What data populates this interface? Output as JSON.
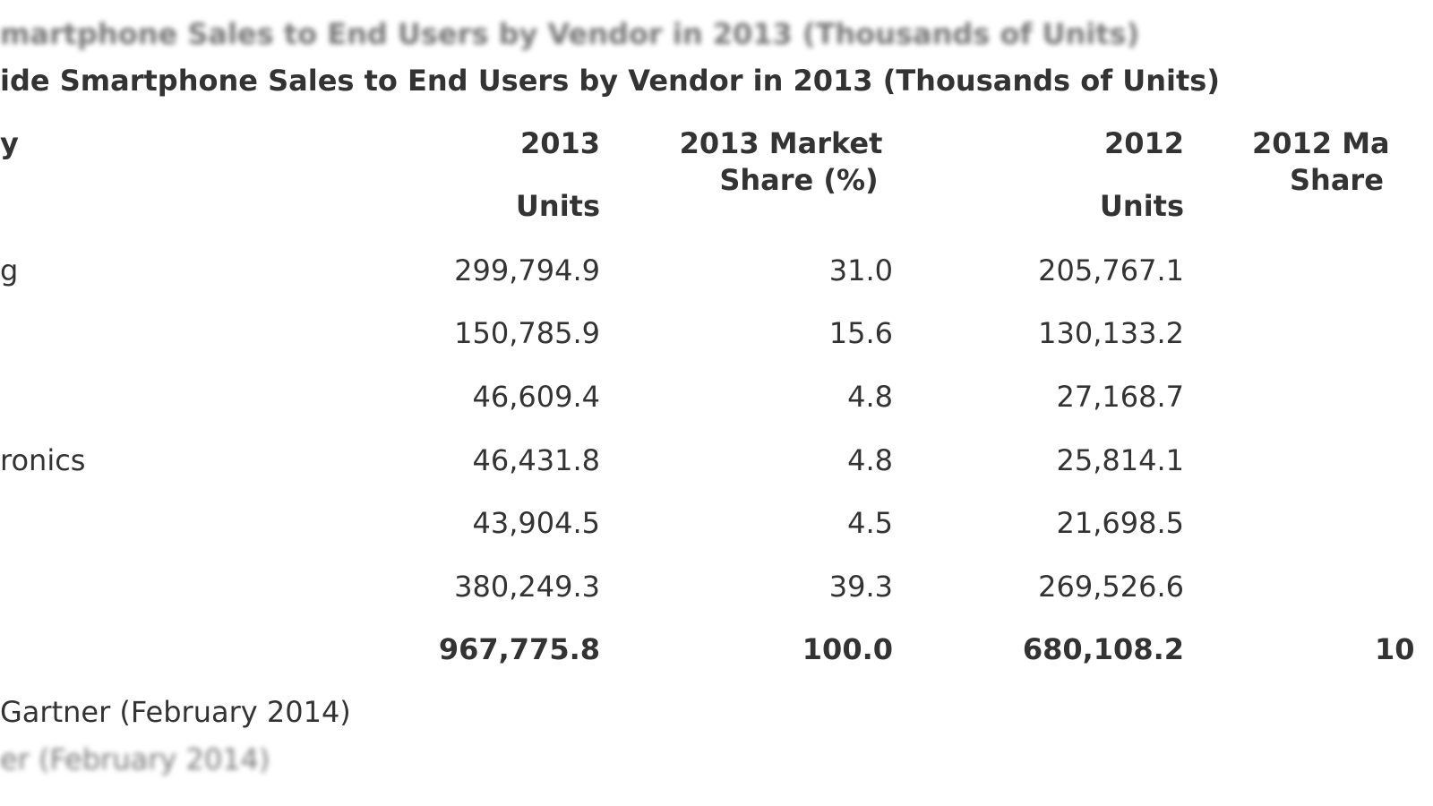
{
  "top_blur": "martphone Sales to End Users by Vendor in 2013 (Thousands of Units)",
  "title": "ide Smartphone Sales to End Users by Vendor in 2013 (Thousands of Units)",
  "table": {
    "header": [
      [
        "y"
      ],
      [
        "2013",
        "Units"
      ],
      [
        "2013 Market",
        "Share (%)"
      ],
      [
        "2012",
        "Units"
      ],
      [
        "2012 Ma",
        "Share"
      ]
    ],
    "rows": [
      [
        "g",
        "299,794.9",
        "31.0",
        "205,767.1"
      ],
      [
        null,
        "150,785.9",
        "15.6",
        "130,133.2"
      ],
      [
        null,
        "46,609.4",
        "4.8",
        "27,168.7"
      ],
      [
        "ronics",
        "46,431.8",
        "4.8",
        "25,814.1"
      ],
      [
        null,
        "43,904.5",
        "4.5",
        "21,698.5"
      ],
      [
        null,
        "380,249.3",
        "39.3",
        "269,526.6"
      ],
      [
        null,
        "967,775.8",
        "100.0",
        "680,108.2",
        "10"
      ]
    ]
  },
  "source": "Gartner (February 2014)",
  "bottom_blur": "er (February 2014)"
}
